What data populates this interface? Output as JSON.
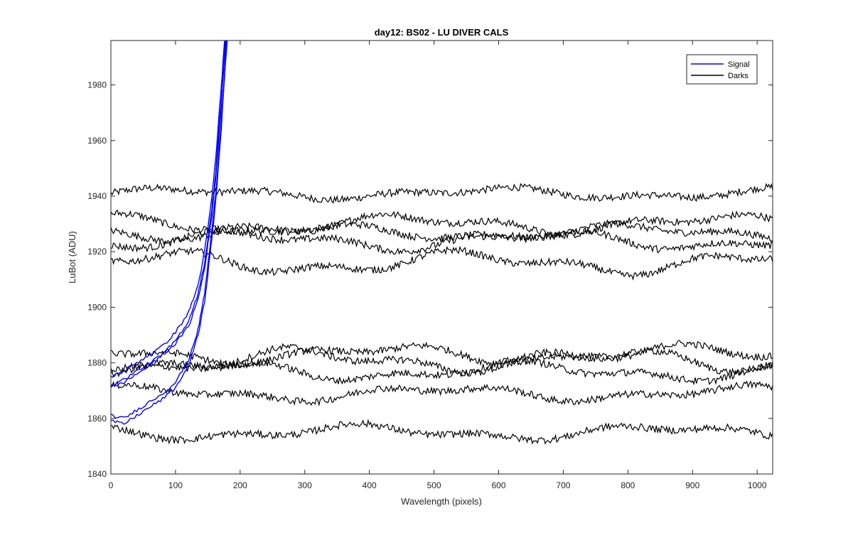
{
  "chart_data": {
    "type": "line",
    "title": "day12: BS02 - LU DIVER CALS",
    "xlabel": "Wavelength (pixels)",
    "ylabel": "LuBot (ADU)",
    "xlim": [
      0,
      1024
    ],
    "ylim": [
      1840,
      1996
    ],
    "xticks": [
      0,
      100,
      200,
      300,
      400,
      500,
      600,
      700,
      800,
      900,
      1000
    ],
    "yticks": [
      1840,
      1860,
      1880,
      1900,
      1920,
      1940,
      1960,
      1980
    ],
    "grid": false,
    "legend_position": "top-right",
    "legend": [
      {
        "name": "Signal",
        "color": "#0000ff"
      },
      {
        "name": "Darks",
        "color": "#000000"
      }
    ],
    "signal_series": {
      "name": "Signal",
      "color": "#0000ff",
      "curves": [
        {
          "x": [
            0,
            20,
            40,
            60,
            80,
            100,
            120,
            135,
            145,
            155,
            162,
            170,
            178
          ],
          "y": [
            1872,
            1874,
            1877,
            1880,
            1883,
            1888,
            1895,
            1905,
            1916,
            1933,
            1948,
            1972,
            1996
          ]
        },
        {
          "x": [
            0,
            20,
            40,
            60,
            80,
            100,
            120,
            135,
            145,
            155,
            162,
            170,
            176
          ],
          "y": [
            1875,
            1877,
            1880,
            1883,
            1886,
            1891,
            1898,
            1908,
            1920,
            1937,
            1953,
            1977,
            1996
          ]
        },
        {
          "x": [
            0,
            20,
            40,
            60,
            80,
            100,
            120,
            135,
            145,
            155,
            163,
            171,
            180
          ],
          "y": [
            1861,
            1860,
            1863,
            1866,
            1869,
            1873,
            1881,
            1892,
            1905,
            1925,
            1943,
            1968,
            1996
          ]
        },
        {
          "x": [
            0,
            20,
            40,
            60,
            80,
            100,
            120,
            135,
            145,
            155,
            163,
            171,
            179
          ],
          "y": [
            1859,
            1858,
            1861,
            1864,
            1867,
            1871,
            1879,
            1890,
            1902,
            1922,
            1940,
            1965,
            1996
          ]
        },
        {
          "x": [
            0,
            20,
            40,
            60,
            80,
            100,
            120,
            135,
            145,
            155,
            162,
            170,
            177
          ],
          "y": [
            1871,
            1873,
            1876,
            1879,
            1883,
            1887,
            1893,
            1903,
            1914,
            1931,
            1946,
            1970,
            1996
          ]
        }
      ]
    },
    "darks_series": {
      "name": "Darks",
      "color": "#000000",
      "baselines": [
        1941,
        1930,
        1927,
        1924,
        1916,
        1883,
        1881,
        1877,
        1869,
        1855
      ],
      "wobble_amplitude": [
        1.5,
        2.5,
        2.0,
        2.5,
        3.0,
        2.5,
        3.0,
        2.5,
        2.0,
        2.0
      ],
      "noise_amplitude": 1.3
    }
  }
}
